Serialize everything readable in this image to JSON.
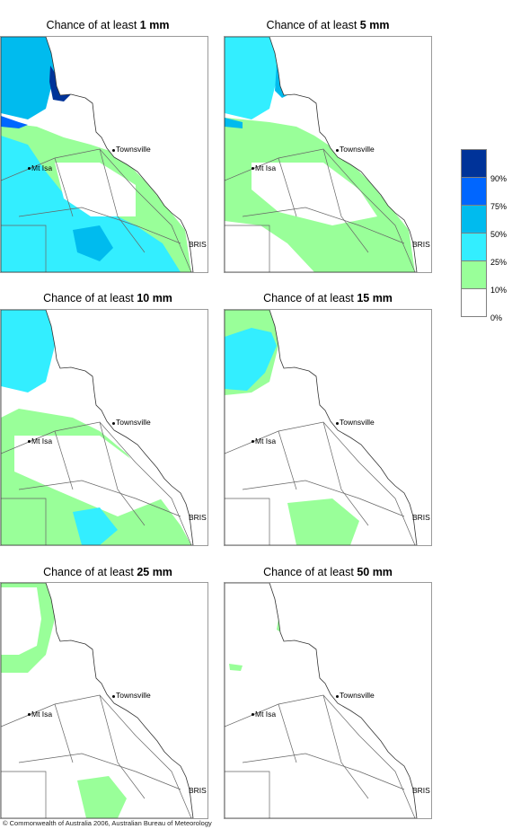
{
  "panels": [
    {
      "prefix": "Chance of at least ",
      "amount": "1 mm",
      "level": 0
    },
    {
      "prefix": "Chance of at least ",
      "amount": "5 mm",
      "level": 1
    },
    {
      "prefix": "Chance of at least ",
      "amount": "10 mm",
      "level": 2
    },
    {
      "prefix": "Chance of at least ",
      "amount": "15 mm",
      "level": 3
    },
    {
      "prefix": "Chance of at least ",
      "amount": "25 mm",
      "level": 4
    },
    {
      "prefix": "Chance of at least ",
      "amount": "50 mm",
      "level": 5
    }
  ],
  "places": {
    "townsville": "Townsville",
    "mt_isa": "Mt Isa",
    "brisbane": "BRIS"
  },
  "legend": {
    "labels": [
      "90%",
      "75%",
      "50%",
      "25%",
      "10%",
      "0%"
    ],
    "colors": [
      "#003399",
      "#0066ff",
      "#00bbee",
      "#33eeff",
      "#99ff99",
      "#ffffff"
    ]
  },
  "colors": {
    "ocean": "#ffffff",
    "coast": "#333333",
    "border": "#666666"
  },
  "copyright": "© Commonwealth of Australia 2006, Australian Bureau of Meteorology"
}
